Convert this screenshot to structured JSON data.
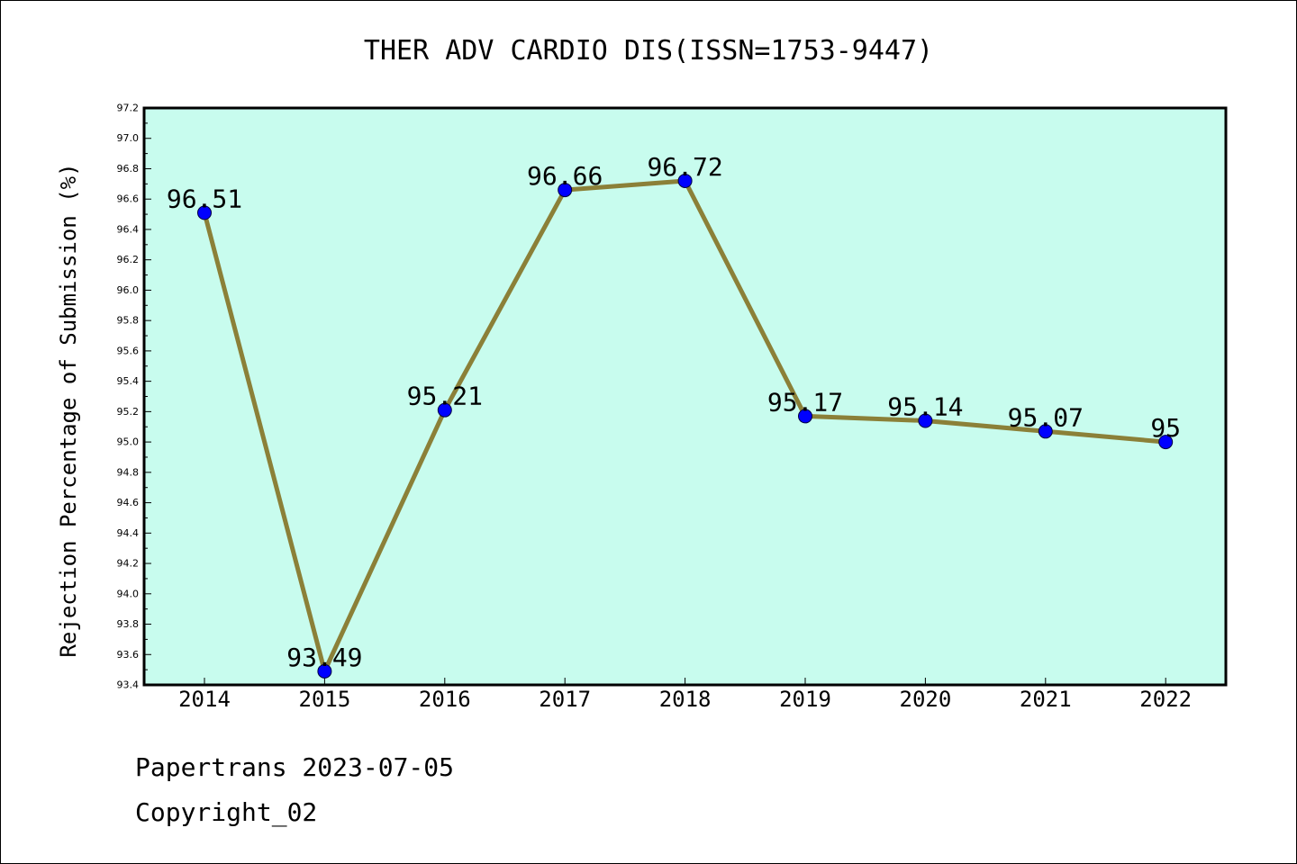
{
  "chart_data": {
    "type": "line",
    "title": "THER ADV CARDIO DIS(ISSN=1753-9447)",
    "xlabel": "",
    "ylabel": "Rejection Percentage of Submission (%)",
    "categories": [
      "2014",
      "2015",
      "2016",
      "2017",
      "2018",
      "2019",
      "2020",
      "2021",
      "2022"
    ],
    "series": [
      {
        "values": [
          96.51,
          93.49,
          95.21,
          96.66,
          96.72,
          95.17,
          95.14,
          95.07,
          95
        ],
        "labels": [
          "96.51",
          "93.49",
          "95.21",
          "96.66",
          "96.72",
          "95.17",
          "95.14",
          "95.07",
          "95"
        ],
        "line_color": "#8B8038",
        "marker_color": "#0000FF"
      }
    ],
    "ylim": [
      93.4,
      97.2
    ],
    "yticks": [
      "93.4",
      "93.6",
      "93.8",
      "94.0",
      "94.2",
      "94.4",
      "94.6",
      "94.8",
      "95.0",
      "95.2",
      "95.4",
      "95.6",
      "95.8",
      "96.0",
      "96.2",
      "96.4",
      "96.6",
      "96.8",
      "97.0",
      "97.2"
    ],
    "plot_background": "#C8FCEE",
    "grid": false,
    "legend": "none"
  },
  "footer": {
    "line1": "Papertrans 2023-07-05",
    "line2": "Copyright_02"
  }
}
